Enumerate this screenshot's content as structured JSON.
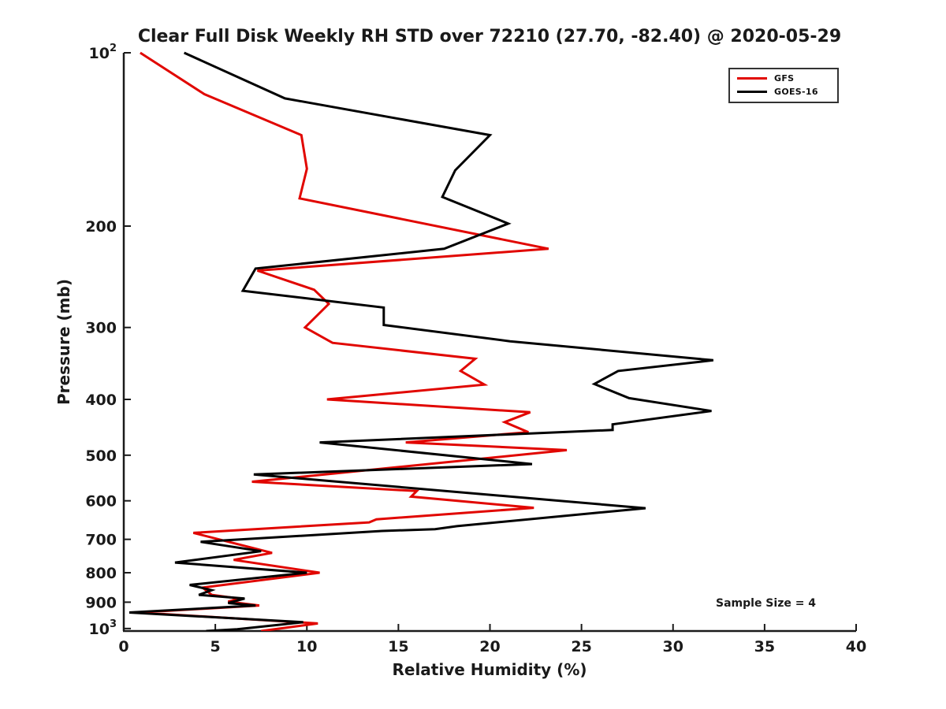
{
  "annotation": {
    "text": "Sample Size = 4"
  },
  "chart_data": {
    "type": "line",
    "title": "Clear Full Disk Weekly RH STD over 72210 (27.70, -82.40) @ 2020-05-29",
    "xlabel": "Relative Humidity (%)",
    "ylabel": "Pressure (mb)",
    "xlim": [
      0,
      40
    ],
    "ylim": [
      100,
      1010
    ],
    "yscale": "log",
    "grid": false,
    "legend_position": "upper-right",
    "x_ticks": [
      0,
      5,
      10,
      15,
      20,
      25,
      30,
      35,
      40
    ],
    "y_ticks": [
      {
        "v": 100,
        "t": "10",
        "e": "2"
      },
      {
        "v": 200,
        "t": "200"
      },
      {
        "v": 300,
        "t": "300"
      },
      {
        "v": 400,
        "t": "400"
      },
      {
        "v": 500,
        "t": "500"
      },
      {
        "v": 600,
        "t": "600"
      },
      {
        "v": 700,
        "t": "700"
      },
      {
        "v": 800,
        "t": "800"
      },
      {
        "v": 900,
        "t": "900"
      },
      {
        "v": 1000,
        "t": "10",
        "e": "3"
      }
    ],
    "series": [
      {
        "name": "GFS",
        "color": "#e10600",
        "points_format": [
          "relative_humidity_pct",
          "pressure_mb"
        ],
        "points": [
          [
            0.9,
            100
          ],
          [
            4.4,
            118
          ],
          [
            9.7,
            139
          ],
          [
            10.0,
            159
          ],
          [
            9.6,
            179
          ],
          [
            23.2,
            219
          ],
          [
            7.3,
            239
          ],
          [
            10.4,
            258
          ],
          [
            11.2,
            273
          ],
          [
            9.9,
            300
          ],
          [
            11.4,
            319
          ],
          [
            19.2,
            340
          ],
          [
            18.4,
            357
          ],
          [
            19.7,
            377
          ],
          [
            11.1,
            400
          ],
          [
            22.2,
            421
          ],
          [
            20.8,
            438
          ],
          [
            22.1,
            456
          ],
          [
            15.4,
            475
          ],
          [
            24.2,
            490
          ],
          [
            7.0,
            556
          ],
          [
            16.0,
            577
          ],
          [
            15.7,
            590
          ],
          [
            22.4,
            617
          ],
          [
            13.8,
            646
          ],
          [
            13.4,
            654
          ],
          [
            3.8,
            682
          ],
          [
            7.0,
            724
          ],
          [
            8.1,
            739
          ],
          [
            6.0,
            760
          ],
          [
            10.7,
            800
          ],
          [
            4.3,
            849
          ],
          [
            4.8,
            874
          ],
          [
            6.3,
            887
          ],
          [
            5.7,
            898
          ],
          [
            7.4,
            912
          ],
          [
            0.8,
            938
          ],
          [
            10.6,
            980
          ],
          [
            7.5,
            1010
          ]
        ]
      },
      {
        "name": "GOES-16",
        "color": "#000000",
        "points_format": [
          "relative_humidity_pct",
          "pressure_mb"
        ],
        "points": [
          [
            3.3,
            100
          ],
          [
            8.8,
            120
          ],
          [
            20.0,
            139
          ],
          [
            18.1,
            160
          ],
          [
            17.4,
            178
          ],
          [
            21.0,
            198
          ],
          [
            17.5,
            219
          ],
          [
            7.2,
            237
          ],
          [
            6.5,
            259
          ],
          [
            14.2,
            277
          ],
          [
            14.2,
            297
          ],
          [
            21.1,
            317
          ],
          [
            32.2,
            342
          ],
          [
            27.0,
            357
          ],
          [
            25.7,
            376
          ],
          [
            27.6,
            398
          ],
          [
            32.1,
            419
          ],
          [
            26.7,
            442
          ],
          [
            26.7,
            452
          ],
          [
            10.7,
            475
          ],
          [
            22.3,
            518
          ],
          [
            7.1,
            540
          ],
          [
            28.5,
            618
          ],
          [
            18.2,
            664
          ],
          [
            17.0,
            672
          ],
          [
            14.1,
            677
          ],
          [
            4.2,
            707
          ],
          [
            7.5,
            734
          ],
          [
            2.8,
            768
          ],
          [
            10.0,
            800
          ],
          [
            3.6,
            840
          ],
          [
            4.8,
            858
          ],
          [
            4.1,
            874
          ],
          [
            6.6,
            887
          ],
          [
            5.7,
            903
          ],
          [
            7.2,
            912
          ],
          [
            0.3,
            938
          ],
          [
            9.8,
            975
          ],
          [
            6.2,
            1003
          ],
          [
            4.5,
            1010
          ]
        ]
      }
    ]
  }
}
